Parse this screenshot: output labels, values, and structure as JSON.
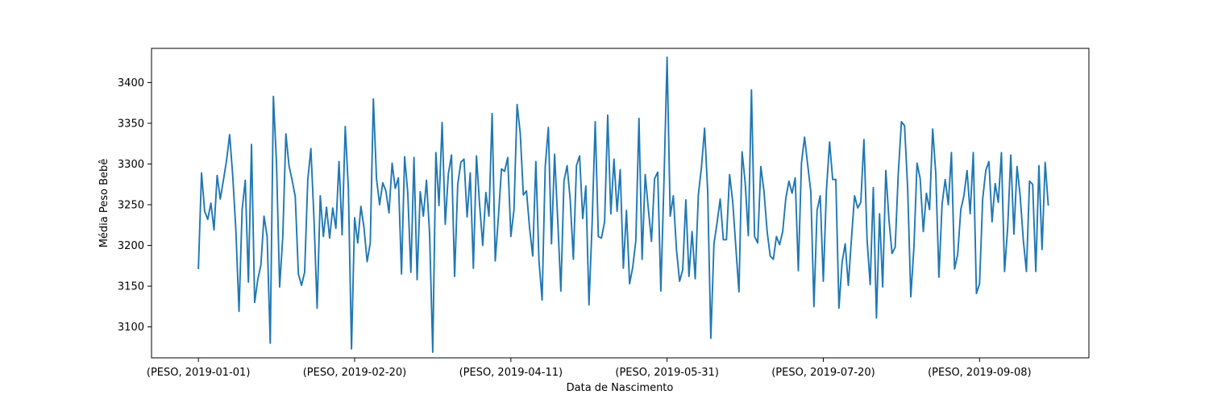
{
  "chart_data": {
    "type": "line",
    "xlabel": "Data de Nascimento",
    "ylabel": "Média Peso Bebê",
    "xlim": [
      "2018-12-17",
      "2019-10-13"
    ],
    "ylim": [
      3062,
      3442
    ],
    "grid": false,
    "legend": "none",
    "x_ticks": [
      {
        "x": "2019-01-01",
        "label": "(PESO, 2019-01-01)"
      },
      {
        "x": "2019-02-20",
        "label": "(PESO, 2019-02-20)"
      },
      {
        "x": "2019-04-11",
        "label": "(PESO, 2019-04-11)"
      },
      {
        "x": "2019-05-31",
        "label": "(PESO, 2019-05-31)"
      },
      {
        "x": "2019-07-20",
        "label": "(PESO, 2019-07-20)"
      },
      {
        "x": "2019-09-08",
        "label": "(PESO, 2019-09-08)"
      }
    ],
    "y_ticks": [
      {
        "y": 3100,
        "label": "3100"
      },
      {
        "y": 3150,
        "label": "3150"
      },
      {
        "y": 3200,
        "label": "3200"
      },
      {
        "y": 3250,
        "label": "3250"
      },
      {
        "y": 3300,
        "label": "3300"
      },
      {
        "y": 3350,
        "label": "3350"
      },
      {
        "y": 3400,
        "label": "3400"
      }
    ],
    "series": [
      {
        "color": "#1f77b4",
        "x_start": "2019-01-01",
        "x_step_days": 1,
        "values": [
          3171,
          3289,
          3242,
          3232,
          3252,
          3219,
          3286,
          3257,
          3280,
          3304,
          3336,
          3285,
          3218,
          3119,
          3244,
          3280,
          3155,
          3324,
          3130,
          3158,
          3176,
          3236,
          3211,
          3080,
          3383,
          3301,
          3149,
          3210,
          3337,
          3298,
          3280,
          3260,
          3165,
          3151,
          3167,
          3280,
          3319,
          3232,
          3123,
          3261,
          3211,
          3247,
          3209,
          3246,
          3221,
          3303,
          3213,
          3346,
          3270,
          3073,
          3234,
          3203,
          3248,
          3222,
          3180,
          3203,
          3380,
          3282,
          3250,
          3277,
          3267,
          3240,
          3301,
          3270,
          3283,
          3165,
          3309,
          3265,
          3167,
          3308,
          3158,
          3266,
          3236,
          3280,
          3214,
          3069,
          3314,
          3249,
          3351,
          3226,
          3288,
          3311,
          3162,
          3275,
          3302,
          3306,
          3235,
          3289,
          3172,
          3310,
          3250,
          3200,
          3265,
          3236,
          3362,
          3181,
          3234,
          3294,
          3291,
          3308,
          3211,
          3244,
          3373,
          3338,
          3262,
          3267,
          3221,
          3187,
          3303,
          3181,
          3133,
          3297,
          3345,
          3202,
          3312,
          3231,
          3144,
          3279,
          3298,
          3256,
          3183,
          3298,
          3310,
          3233,
          3273,
          3127,
          3226,
          3352,
          3211,
          3209,
          3229,
          3360,
          3239,
          3306,
          3242,
          3293,
          3172,
          3243,
          3153,
          3173,
          3206,
          3356,
          3183,
          3287,
          3245,
          3205,
          3282,
          3290,
          3144,
          3278,
          3431,
          3236,
          3261,
          3195,
          3156,
          3170,
          3256,
          3162,
          3217,
          3159,
          3262,
          3296,
          3344,
          3266,
          3086,
          3202,
          3228,
          3257,
          3207,
          3207,
          3287,
          3254,
          3198,
          3143,
          3315,
          3277,
          3212,
          3391,
          3211,
          3203,
          3297,
          3267,
          3218,
          3187,
          3183,
          3211,
          3201,
          3217,
          3258,
          3279,
          3264,
          3283,
          3169,
          3301,
          3333,
          3299,
          3266,
          3125,
          3243,
          3261,
          3156,
          3268,
          3327,
          3281,
          3281,
          3123,
          3179,
          3202,
          3151,
          3208,
          3261,
          3246,
          3253,
          3330,
          3207,
          3152,
          3271,
          3111,
          3239,
          3149,
          3292,
          3232,
          3190,
          3198,
          3289,
          3352,
          3347,
          3270,
          3137,
          3198,
          3301,
          3282,
          3217,
          3264,
          3244,
          3343,
          3288,
          3161,
          3250,
          3281,
          3250,
          3314,
          3171,
          3189,
          3244,
          3261,
          3292,
          3239,
          3314,
          3141,
          3153,
          3257,
          3292,
          3303,
          3229,
          3276,
          3253,
          3314,
          3168,
          3222,
          3311,
          3214,
          3297,
          3261,
          3207,
          3168,
          3279,
          3275,
          3168,
          3298,
          3195,
          3302,
          3249
        ]
      }
    ]
  }
}
